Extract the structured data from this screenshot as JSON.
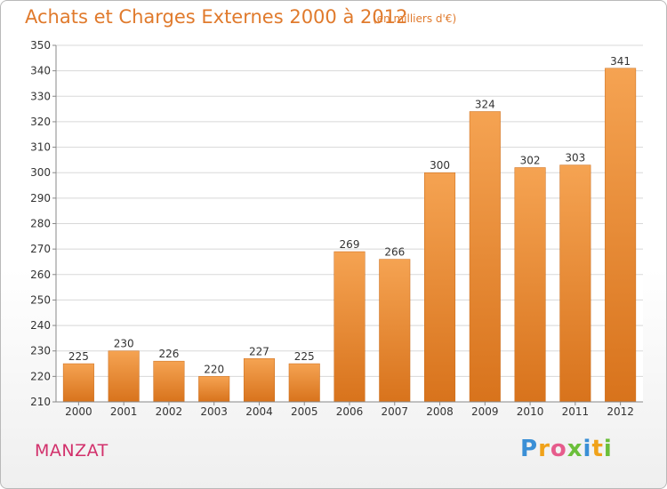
{
  "header": {
    "title": "Achats et Charges Externes 2000 à 2012",
    "subtitle": "(en milliers d'€)"
  },
  "footer": {
    "city": "MANZAT",
    "logo": {
      "letters": [
        "P",
        "r",
        "o",
        "x",
        "i",
        "t",
        "i"
      ],
      "colors": [
        "#3a8fd6",
        "#f0a21a",
        "#e65c8c",
        "#6bbf3a",
        "#3a8fd6",
        "#f0a21a",
        "#6bbf3a"
      ]
    }
  },
  "chart_data": {
    "type": "bar",
    "title": "Achats et Charges Externes 2000 à 2012",
    "subtitle": "(en milliers d'€)",
    "categories": [
      "2000",
      "2001",
      "2002",
      "2003",
      "2004",
      "2005",
      "2006",
      "2007",
      "2008",
      "2009",
      "2010",
      "2011",
      "2012"
    ],
    "values": [
      225,
      230,
      226,
      220,
      227,
      225,
      269,
      266,
      300,
      324,
      302,
      303,
      341
    ],
    "ylim": [
      210,
      350
    ],
    "yticks": [
      210,
      220,
      230,
      240,
      250,
      260,
      270,
      280,
      290,
      300,
      310,
      320,
      330,
      340,
      350
    ],
    "grid": true,
    "bar_color_top": "#f5a352",
    "bar_color_bottom": "#d8731c"
  }
}
